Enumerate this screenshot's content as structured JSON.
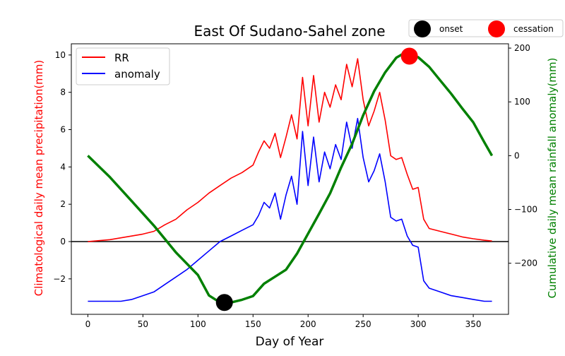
{
  "chart_data": {
    "type": "line",
    "title": "East Of Sudano-Sahel zone",
    "xlabel": "Day of Year",
    "ylabel_left": "Climatological daily mean precipitation(mm)",
    "ylabel_right": "Cumulative daily mean rainfall anomaly(mm)",
    "xlim": [
      -15,
      382
    ],
    "ylim_left": [
      -3.9,
      10.6
    ],
    "ylim_right": [
      -295,
      208
    ],
    "x_ticks": [
      0,
      50,
      100,
      150,
      200,
      250,
      300,
      350
    ],
    "y_ticks_left": [
      -2,
      0,
      2,
      4,
      6,
      8,
      10
    ],
    "y_ticks_right": [
      -200,
      -100,
      0,
      100,
      200
    ],
    "hline_left": 0,
    "series": [
      {
        "name": "RR",
        "axis": "left",
        "color": "#ff0000",
        "x": [
          0,
          10,
          20,
          30,
          40,
          50,
          60,
          70,
          80,
          90,
          100,
          110,
          120,
          130,
          140,
          150,
          155,
          160,
          165,
          170,
          175,
          180,
          185,
          190,
          195,
          200,
          205,
          210,
          215,
          220,
          225,
          230,
          235,
          240,
          245,
          250,
          255,
          260,
          265,
          270,
          275,
          280,
          285,
          290,
          295,
          300,
          305,
          310,
          320,
          330,
          340,
          350,
          360,
          367
        ],
        "y": [
          0.0,
          0.05,
          0.1,
          0.2,
          0.3,
          0.4,
          0.55,
          0.9,
          1.2,
          1.7,
          2.1,
          2.6,
          3.0,
          3.4,
          3.7,
          4.1,
          4.8,
          5.4,
          5.0,
          5.8,
          4.5,
          5.6,
          6.8,
          5.5,
          8.8,
          6.2,
          8.9,
          6.4,
          8.0,
          7.2,
          8.4,
          7.6,
          9.5,
          8.3,
          9.8,
          7.6,
          6.2,
          7.0,
          8.0,
          6.5,
          4.6,
          4.4,
          4.5,
          3.6,
          2.8,
          2.9,
          1.2,
          0.7,
          0.55,
          0.4,
          0.25,
          0.15,
          0.07,
          0.03
        ]
      },
      {
        "name": "anomaly",
        "axis": "left",
        "color": "#0000ff",
        "x": [
          0,
          10,
          20,
          30,
          40,
          50,
          60,
          70,
          80,
          90,
          100,
          110,
          120,
          130,
          140,
          150,
          155,
          160,
          165,
          170,
          175,
          180,
          185,
          190,
          195,
          200,
          205,
          210,
          215,
          220,
          225,
          230,
          235,
          240,
          245,
          250,
          255,
          260,
          265,
          270,
          275,
          280,
          285,
          290,
          295,
          300,
          305,
          310,
          320,
          330,
          340,
          350,
          360,
          367
        ],
        "y": [
          -3.2,
          -3.2,
          -3.2,
          -3.2,
          -3.1,
          -2.9,
          -2.7,
          -2.3,
          -1.9,
          -1.5,
          -1.0,
          -0.5,
          0.0,
          0.3,
          0.6,
          0.9,
          1.4,
          2.1,
          1.8,
          2.6,
          1.2,
          2.5,
          3.5,
          2.0,
          5.9,
          3.0,
          5.6,
          3.2,
          4.8,
          3.9,
          5.2,
          4.4,
          6.4,
          5.0,
          6.6,
          4.5,
          3.2,
          3.8,
          4.7,
          3.2,
          1.3,
          1.1,
          1.2,
          0.3,
          -0.2,
          -0.3,
          -2.1,
          -2.5,
          -2.7,
          -2.9,
          -3.0,
          -3.1,
          -3.2,
          -3.2
        ]
      },
      {
        "name": "cumulative anomaly",
        "axis": "right",
        "color": "#008000",
        "x": [
          0,
          20,
          40,
          60,
          80,
          100,
          110,
          120,
          124,
          130,
          140,
          150,
          160,
          170,
          180,
          190,
          200,
          210,
          220,
          230,
          240,
          250,
          260,
          270,
          280,
          285,
          290,
          292,
          300,
          310,
          320,
          330,
          340,
          350,
          360,
          367
        ],
        "y": [
          0,
          -40,
          -85,
          -130,
          -180,
          -222,
          -260,
          -273,
          -275,
          -273,
          -268,
          -261,
          -238,
          -225,
          -212,
          -182,
          -145,
          -108,
          -70,
          -22,
          22,
          75,
          120,
          155,
          182,
          188,
          187,
          187,
          183,
          165,
          140,
          115,
          88,
          62,
          25,
          0
        ]
      }
    ],
    "markers": [
      {
        "name": "onset",
        "x": 124,
        "y_right": -273,
        "color": "#000000"
      },
      {
        "name": "cessation",
        "x": 292,
        "y_right": 185,
        "color": "#ff0000"
      }
    ],
    "legend_main": {
      "placement": "upper-left",
      "entries": [
        "RR",
        "anomaly"
      ]
    },
    "legend_markers": {
      "placement": "top-right",
      "entries": [
        "onset",
        "cessation"
      ]
    }
  }
}
